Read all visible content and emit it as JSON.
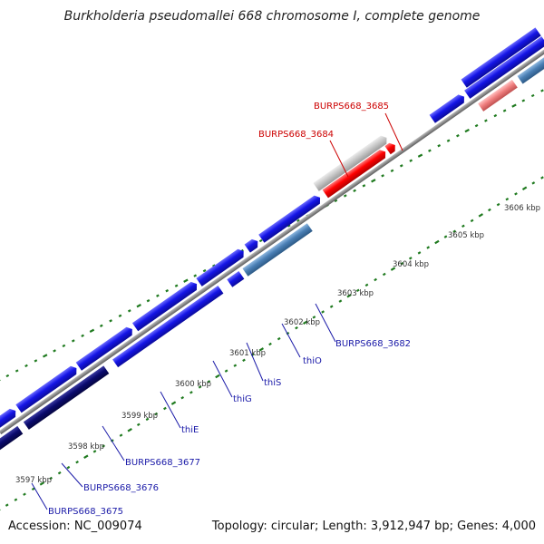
{
  "title": "Burkholderia pseudomallei 668 chromosome I, complete genome",
  "footer": {
    "accession": "Accession: NC_009074",
    "summary": "Topology: circular; Length: 3,912,947 bp; Genes: 4,000"
  },
  "axis_ticks": [
    "3597 kbp",
    "3598 kbp",
    "3599 kbp",
    "3600 kbp",
    "3601 kbp",
    "3602 kbp",
    "3603 kbp",
    "3604 kbp",
    "3605 kbp",
    "3606 kbp"
  ],
  "gene_labels": [
    {
      "text": "BURPS668_3675",
      "color": "#1a1aa8"
    },
    {
      "text": "BURPS668_3676",
      "color": "#1a1aa8"
    },
    {
      "text": "BURPS668_3677",
      "color": "#1a1aa8"
    },
    {
      "text": "thiE",
      "color": "#1a1aa8"
    },
    {
      "text": "thiG",
      "color": "#1a1aa8"
    },
    {
      "text": "thiS",
      "color": "#1a1aa8"
    },
    {
      "text": "thiO",
      "color": "#1a1aa8"
    },
    {
      "text": "BURPS668_3682",
      "color": "#1a1aa8"
    },
    {
      "text": "BURPS668_3684",
      "color": "#cc0000"
    },
    {
      "text": "BURPS668_3685",
      "color": "#cc0000"
    }
  ],
  "colors": {
    "backbone": "#8c8c8c",
    "gene_blue": "#1414e6",
    "gene_navy": "#0a0a6e",
    "gene_steel": "#4a7fb5",
    "gene_red": "#ff0000",
    "gene_pink": "#f08080",
    "gene_gray": "#c8c8c8",
    "tick_green": "#1f7a1f"
  }
}
